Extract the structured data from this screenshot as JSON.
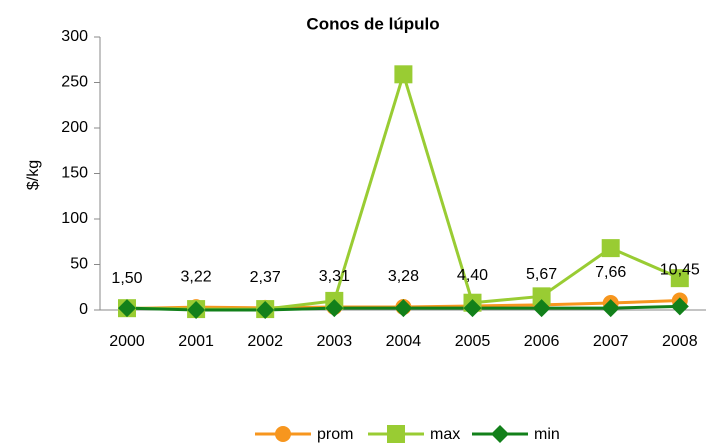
{
  "chart_data": {
    "type": "line",
    "title": "Conos de lúpulo",
    "y_label": "$/kg",
    "categories": [
      "2000",
      "2001",
      "2002",
      "2003",
      "2004",
      "2005",
      "2006",
      "2007",
      "2008"
    ],
    "series": [
      {
        "name": "prom",
        "color": "#f7961e",
        "marker": "circle",
        "values": [
          1.5,
          3.22,
          2.37,
          3.31,
          3.28,
          4.4,
          5.67,
          7.66,
          10.45
        ],
        "value_labels": [
          "1,50",
          "3,22",
          "2,37",
          "3,31",
          "3,28",
          "4,40",
          "5,67",
          "7,66",
          "10,45"
        ]
      },
      {
        "name": "max",
        "color": "#99cc33",
        "marker": "square",
        "values": [
          2,
          1,
          1,
          10,
          259,
          8,
          15,
          68,
          35
        ]
      },
      {
        "name": "min",
        "color": "#12801a",
        "marker": "diamond",
        "values": [
          2,
          0,
          0,
          2,
          2,
          2,
          2,
          2,
          4
        ]
      }
    ],
    "ylim": [
      0,
      300
    ],
    "yticks": [
      0,
      50,
      100,
      150,
      200,
      250,
      300
    ],
    "legend": "bottom"
  }
}
